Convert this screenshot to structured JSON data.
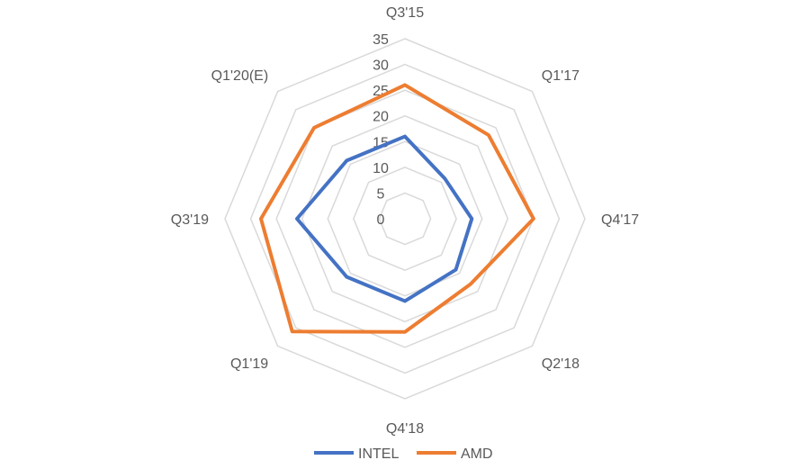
{
  "chart_data": {
    "type": "radar",
    "categories": [
      "Q3'15",
      "Q1'17",
      "Q4'17",
      "Q2'18",
      "Q4'18",
      "Q1'19",
      "Q3'19",
      "Q1'20(E)"
    ],
    "rlim": [
      0,
      35
    ],
    "ticks": [
      0,
      5,
      10,
      15,
      20,
      25,
      30,
      35
    ],
    "grid": true,
    "legend": "bottom",
    "series": [
      {
        "name": "INTEL",
        "color": "#4472C4",
        "values": [
          16,
          11,
          13,
          14,
          16,
          16,
          21,
          16
        ]
      },
      {
        "name": "AMD",
        "color": "#ED7D31",
        "values": [
          26,
          23,
          25,
          18,
          22,
          31,
          28,
          25
        ]
      }
    ]
  }
}
